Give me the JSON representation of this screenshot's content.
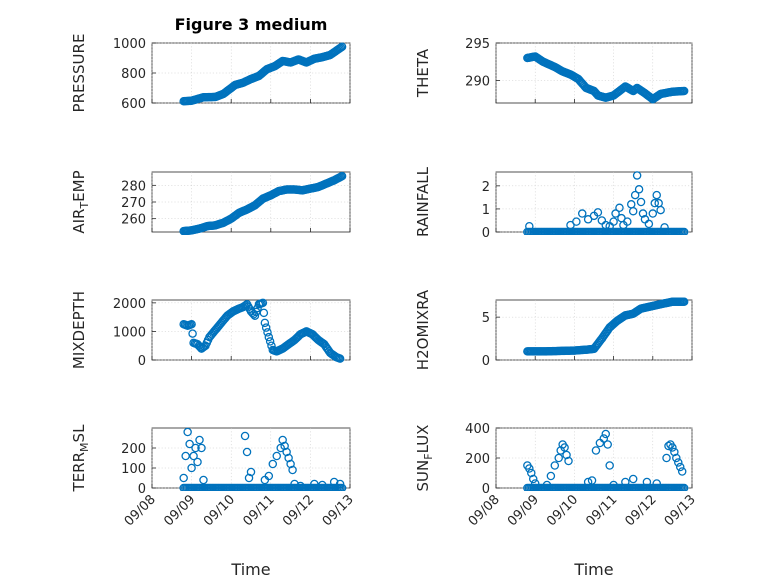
{
  "figure": {
    "title": "Figure 3 medium",
    "marker_color": "#0072BD",
    "xlabel": "Time",
    "x_ticks": [
      "09/08",
      "09/09",
      "09/10",
      "09/11",
      "09/12",
      "09/13"
    ]
  },
  "chart_data": [
    {
      "type": "scatter",
      "name": "pressure-panel",
      "ylabel": "PRESSURE",
      "ylim": [
        600,
        1000
      ],
      "yticks": [
        "600",
        "800",
        "1000"
      ],
      "x_days": [
        0.8,
        4.8
      ],
      "grid": true,
      "anchors": [
        [
          0.8,
          612
        ],
        [
          1.0,
          615
        ],
        [
          1.3,
          638
        ],
        [
          1.6,
          640
        ],
        [
          1.8,
          660
        ],
        [
          2.1,
          720
        ],
        [
          2.3,
          735
        ],
        [
          2.5,
          760
        ],
        [
          2.7,
          780
        ],
        [
          2.9,
          825
        ],
        [
          3.1,
          845
        ],
        [
          3.3,
          880
        ],
        [
          3.5,
          870
        ],
        [
          3.7,
          890
        ],
        [
          3.9,
          870
        ],
        [
          4.1,
          895
        ],
        [
          4.3,
          905
        ],
        [
          4.5,
          920
        ],
        [
          4.8,
          975
        ]
      ],
      "mode": "line"
    },
    {
      "type": "scatter",
      "name": "theta-panel",
      "ylabel": "THETA",
      "ylim": [
        287,
        295
      ],
      "yticks": [
        "290",
        "295"
      ],
      "x_days": [
        0.8,
        4.8
      ],
      "grid": true,
      "anchors": [
        [
          0.8,
          293.0
        ],
        [
          1.0,
          293.2
        ],
        [
          1.2,
          292.5
        ],
        [
          1.5,
          291.8
        ],
        [
          1.7,
          291.2
        ],
        [
          1.9,
          290.8
        ],
        [
          2.1,
          290.2
        ],
        [
          2.3,
          289.0
        ],
        [
          2.5,
          288.6
        ],
        [
          2.6,
          288.0
        ],
        [
          2.8,
          287.7
        ],
        [
          3.0,
          288.0
        ],
        [
          3.2,
          288.8
        ],
        [
          3.3,
          289.2
        ],
        [
          3.5,
          288.6
        ],
        [
          3.6,
          289.0
        ],
        [
          3.8,
          288.3
        ],
        [
          4.0,
          287.5
        ],
        [
          4.2,
          288.2
        ],
        [
          4.5,
          288.5
        ],
        [
          4.8,
          288.6
        ]
      ],
      "mode": "line"
    },
    {
      "type": "scatter",
      "name": "air-temp-panel",
      "ylabel_main": "AIR",
      "ylabel_sub": "T",
      "ylabel_rest": "EMP",
      "ylim": [
        252,
        288
      ],
      "yticks": [
        "260",
        "270",
        "280"
      ],
      "x_days": [
        0.8,
        4.8
      ],
      "grid": true,
      "anchors": [
        [
          0.8,
          252.5
        ],
        [
          1.0,
          253
        ],
        [
          1.2,
          254
        ],
        [
          1.4,
          255.5
        ],
        [
          1.6,
          256
        ],
        [
          1.8,
          257.5
        ],
        [
          2.0,
          260
        ],
        [
          2.2,
          263.5
        ],
        [
          2.4,
          265.5
        ],
        [
          2.6,
          268
        ],
        [
          2.8,
          272
        ],
        [
          3.0,
          274
        ],
        [
          3.2,
          276.5
        ],
        [
          3.4,
          277.5
        ],
        [
          3.6,
          277.5
        ],
        [
          3.8,
          277
        ],
        [
          4.0,
          278
        ],
        [
          4.2,
          279
        ],
        [
          4.4,
          281
        ],
        [
          4.6,
          283
        ],
        [
          4.8,
          285.5
        ]
      ],
      "mode": "line"
    },
    {
      "type": "scatter",
      "name": "rainfall-panel",
      "ylabel": "RAINFALL",
      "ylim": [
        0,
        2.6
      ],
      "yticks": [
        "0",
        "1",
        "2"
      ],
      "x_days": [
        0.8,
        4.8
      ],
      "grid": true,
      "baseline": 0,
      "spikes": [
        [
          0.85,
          0.25
        ],
        [
          1.9,
          0.3
        ],
        [
          2.05,
          0.45
        ],
        [
          2.2,
          0.8
        ],
        [
          2.35,
          0.55
        ],
        [
          2.5,
          0.7
        ],
        [
          2.6,
          0.85
        ],
        [
          2.7,
          0.5
        ],
        [
          2.8,
          0.3
        ],
        [
          2.9,
          0.25
        ],
        [
          3.0,
          0.45
        ],
        [
          3.05,
          0.8
        ],
        [
          3.15,
          1.05
        ],
        [
          3.2,
          0.6
        ],
        [
          3.25,
          0.3
        ],
        [
          3.35,
          0.45
        ],
        [
          3.45,
          1.2
        ],
        [
          3.5,
          0.9
        ],
        [
          3.55,
          1.6
        ],
        [
          3.6,
          2.45
        ],
        [
          3.65,
          1.85
        ],
        [
          3.7,
          1.3
        ],
        [
          3.75,
          0.8
        ],
        [
          3.8,
          0.55
        ],
        [
          3.9,
          0.35
        ],
        [
          4.0,
          0.8
        ],
        [
          4.05,
          1.25
        ],
        [
          4.1,
          1.6
        ],
        [
          4.15,
          1.25
        ],
        [
          4.2,
          0.95
        ],
        [
          4.3,
          0.2
        ]
      ],
      "mode": "spikes"
    },
    {
      "type": "scatter",
      "name": "mixdepth-panel",
      "ylabel": "MIXDEPTH",
      "ylim": [
        0,
        2100
      ],
      "yticks": [
        "0",
        "1000",
        "2000"
      ],
      "x_days": [
        0.8,
        4.8
      ],
      "grid": true,
      "anchors": [
        [
          0.8,
          1250
        ],
        [
          0.9,
          1200
        ],
        [
          1.0,
          1250
        ],
        [
          1.05,
          600
        ],
        [
          1.15,
          550
        ],
        [
          1.25,
          400
        ],
        [
          1.35,
          500
        ],
        [
          1.45,
          800
        ],
        [
          1.6,
          1050
        ],
        [
          1.75,
          1300
        ],
        [
          1.9,
          1550
        ],
        [
          2.05,
          1700
        ],
        [
          2.2,
          1800
        ],
        [
          2.3,
          1850
        ],
        [
          2.4,
          1950
        ],
        [
          2.5,
          1700
        ],
        [
          2.6,
          1550
        ],
        [
          2.7,
          1950
        ],
        [
          2.8,
          2000
        ],
        [
          2.85,
          1300
        ],
        [
          2.95,
          800
        ],
        [
          3.05,
          350
        ],
        [
          3.15,
          300
        ],
        [
          3.3,
          400
        ],
        [
          3.45,
          550
        ],
        [
          3.6,
          700
        ],
        [
          3.75,
          900
        ],
        [
          3.9,
          1000
        ],
        [
          4.05,
          900
        ],
        [
          4.2,
          700
        ],
        [
          4.35,
          550
        ],
        [
          4.5,
          250
        ],
        [
          4.65,
          100
        ],
        [
          4.75,
          50
        ]
      ],
      "mode": "line"
    },
    {
      "type": "scatter",
      "name": "h2omixra-panel",
      "ylabel": "H2OMIXRA",
      "ylim": [
        0,
        7
      ],
      "yticks": [
        "0",
        "5"
      ],
      "x_days": [
        0.8,
        4.8
      ],
      "grid": true,
      "anchors": [
        [
          0.8,
          1.0
        ],
        [
          1.2,
          1.0
        ],
        [
          1.6,
          1.05
        ],
        [
          2.0,
          1.1
        ],
        [
          2.3,
          1.2
        ],
        [
          2.5,
          1.3
        ],
        [
          2.7,
          2.5
        ],
        [
          2.9,
          3.8
        ],
        [
          3.1,
          4.6
        ],
        [
          3.3,
          5.2
        ],
        [
          3.5,
          5.4
        ],
        [
          3.7,
          6.0
        ],
        [
          3.9,
          6.2
        ],
        [
          4.1,
          6.4
        ],
        [
          4.3,
          6.6
        ],
        [
          4.5,
          6.8
        ],
        [
          4.8,
          6.8
        ]
      ],
      "mode": "line"
    },
    {
      "type": "scatter",
      "name": "terr-msl-panel",
      "ylabel_main": "TERR",
      "ylabel_sub": "M",
      "ylabel_rest": "SL",
      "ylim": [
        0,
        300
      ],
      "yticks": [
        "0",
        "100",
        "200"
      ],
      "x_days": [
        0.8,
        4.8
      ],
      "grid": true,
      "baseline": 0,
      "spikes": [
        [
          0.8,
          50
        ],
        [
          0.85,
          160
        ],
        [
          0.9,
          280
        ],
        [
          0.95,
          220
        ],
        [
          1.0,
          100
        ],
        [
          1.05,
          160
        ],
        [
          1.1,
          200
        ],
        [
          1.15,
          130
        ],
        [
          1.2,
          240
        ],
        [
          1.25,
          200
        ],
        [
          1.3,
          40
        ],
        [
          2.35,
          260
        ],
        [
          2.4,
          180
        ],
        [
          2.45,
          50
        ],
        [
          2.5,
          80
        ],
        [
          2.85,
          40
        ],
        [
          2.95,
          60
        ],
        [
          3.05,
          120
        ],
        [
          3.15,
          160
        ],
        [
          3.25,
          200
        ],
        [
          3.3,
          240
        ],
        [
          3.35,
          210
        ],
        [
          3.4,
          180
        ],
        [
          3.45,
          150
        ],
        [
          3.5,
          120
        ],
        [
          3.55,
          90
        ],
        [
          3.6,
          20
        ],
        [
          3.75,
          10
        ],
        [
          4.1,
          20
        ],
        [
          4.3,
          15
        ],
        [
          4.6,
          30
        ],
        [
          4.75,
          20
        ]
      ],
      "mode": "spikes"
    },
    {
      "type": "scatter",
      "name": "sun-flux-panel",
      "ylabel_main": "SUN",
      "ylabel_sub": "F",
      "ylabel_rest": "LUX",
      "ylim": [
        0,
        400
      ],
      "yticks": [
        "0",
        "200",
        "400"
      ],
      "x_days": [
        0.8,
        4.8
      ],
      "grid": true,
      "baseline": 0,
      "spikes": [
        [
          0.8,
          150
        ],
        [
          0.85,
          130
        ],
        [
          0.9,
          100
        ],
        [
          0.95,
          60
        ],
        [
          1.0,
          30
        ],
        [
          1.3,
          20
        ],
        [
          1.4,
          80
        ],
        [
          1.5,
          150
        ],
        [
          1.6,
          200
        ],
        [
          1.65,
          250
        ],
        [
          1.7,
          290
        ],
        [
          1.75,
          270
        ],
        [
          1.8,
          220
        ],
        [
          1.85,
          180
        ],
        [
          2.35,
          40
        ],
        [
          2.45,
          50
        ],
        [
          2.55,
          250
        ],
        [
          2.65,
          300
        ],
        [
          2.75,
          330
        ],
        [
          2.8,
          360
        ],
        [
          2.85,
          290
        ],
        [
          2.9,
          150
        ],
        [
          3.0,
          20
        ],
        [
          3.3,
          40
        ],
        [
          3.5,
          60
        ],
        [
          3.85,
          40
        ],
        [
          4.1,
          30
        ],
        [
          4.35,
          200
        ],
        [
          4.4,
          280
        ],
        [
          4.45,
          290
        ],
        [
          4.5,
          270
        ],
        [
          4.55,
          240
        ],
        [
          4.6,
          200
        ],
        [
          4.65,
          170
        ],
        [
          4.7,
          140
        ],
        [
          4.75,
          110
        ]
      ],
      "mode": "spikes"
    }
  ]
}
